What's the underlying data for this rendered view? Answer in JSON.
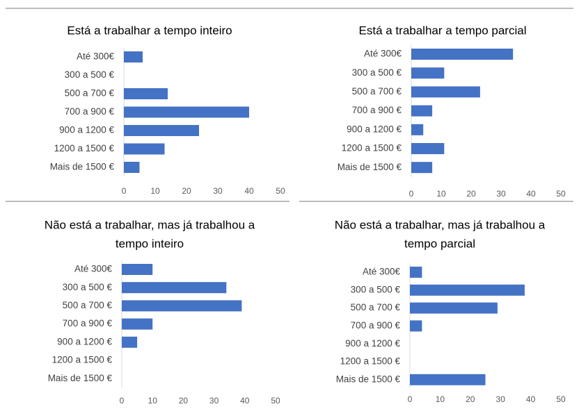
{
  "chart_data": [
    {
      "type": "bar",
      "orientation": "horizontal",
      "title": [
        "Está a trabalhar a tempo inteiro"
      ],
      "categories": [
        "Até 300€",
        "300 a 500 €",
        "500 a 700 €",
        "700 a 900 €",
        "900 a 1200 €",
        "1200 a 1500 €",
        "Mais de 1500 €"
      ],
      "values": [
        6,
        0,
        14,
        40,
        24,
        13,
        5
      ],
      "color": "#4472c4",
      "xlim": [
        0,
        50
      ],
      "xticks": [
        0,
        10,
        20,
        30,
        40,
        50
      ]
    },
    {
      "type": "bar",
      "orientation": "horizontal",
      "title": [
        "Está a trabalhar a tempo parcial"
      ],
      "categories": [
        "Até 300€",
        "300 a 500 €",
        "500 a 700 €",
        "700 a 900 €",
        "900 a 1200 €",
        "1200 a 1500 €",
        "Mais de 1500 €"
      ],
      "values": [
        34,
        11,
        23,
        7,
        4,
        11,
        7
      ],
      "color": "#4472c4",
      "xlim": [
        0,
        50
      ],
      "xticks": [
        0,
        10,
        20,
        30,
        40,
        50
      ]
    },
    {
      "type": "bar",
      "orientation": "horizontal",
      "title": [
        "Não está a trabalhar, mas já trabalhou a",
        "tempo inteiro"
      ],
      "categories": [
        "Até 300€",
        "300 a 500 €",
        "500 a 700 €",
        "700 a 900 €",
        "900 a 1200 €",
        "1200 a 1500 €",
        "Mais de 1500 €"
      ],
      "values": [
        10,
        34,
        39,
        10,
        5,
        0,
        0
      ],
      "color": "#4472c4",
      "xlim": [
        0,
        50
      ],
      "xticks": [
        0,
        10,
        20,
        30,
        40,
        50
      ]
    },
    {
      "type": "bar",
      "orientation": "horizontal",
      "title": [
        "Não está a trabalhar, mas já trabalhou a",
        "tempo parcial"
      ],
      "categories": [
        "Até 300€",
        "300 a 500 €",
        "500 a 700 €",
        "700 a 900 €",
        "900 a 1200 €",
        "1200 a 1500 €",
        "Mais de 1500 €"
      ],
      "values": [
        4,
        38,
        29,
        4,
        0,
        0,
        25
      ],
      "color": "#4472c4",
      "xlim": [
        0,
        50
      ],
      "xticks": [
        0,
        10,
        20,
        30,
        40,
        50
      ]
    }
  ]
}
